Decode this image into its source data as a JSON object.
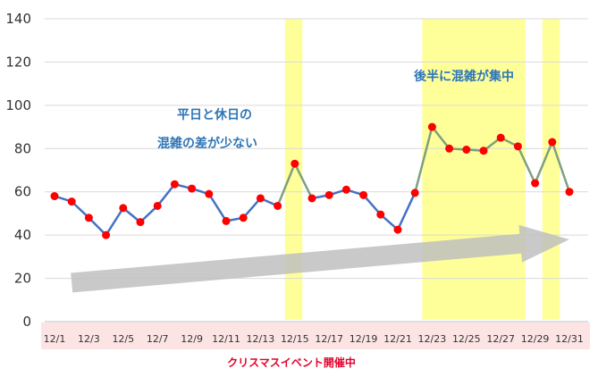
{
  "chart_data": {
    "type": "line",
    "x": [
      "12/1",
      "12/2",
      "12/3",
      "12/4",
      "12/5",
      "12/6",
      "12/7",
      "12/8",
      "12/9",
      "12/10",
      "12/11",
      "12/12",
      "12/13",
      "12/14",
      "12/15",
      "12/16",
      "12/17",
      "12/18",
      "12/19",
      "12/20",
      "12/21",
      "12/22",
      "12/23",
      "12/24",
      "12/25",
      "12/26",
      "12/27",
      "12/28",
      "12/29",
      "12/30",
      "12/31"
    ],
    "values": [
      58,
      55.5,
      48,
      40,
      52.5,
      46,
      53.5,
      63.5,
      61.5,
      59,
      46.5,
      48,
      57,
      53.5,
      73,
      57,
      58.5,
      61,
      58.5,
      49.5,
      42.5,
      59.5,
      90,
      80,
      79.5,
      79,
      85,
      81,
      64,
      83,
      60
    ],
    "x_tick_labels": [
      "12/1",
      "12/3",
      "12/5",
      "12/7",
      "12/9",
      "12/11",
      "12/13",
      "12/15",
      "12/17",
      "12/19",
      "12/21",
      "12/23",
      "12/25",
      "12/27",
      "12/29",
      "12/31"
    ],
    "ylim": [
      0,
      140
    ],
    "y_ticks": [
      0,
      20,
      40,
      60,
      80,
      100,
      120,
      140
    ],
    "grid": true,
    "highlighted_days": [
      "12/15",
      "12/23",
      "12/24",
      "12/25",
      "12/26",
      "12/27",
      "12/28",
      "12/30"
    ],
    "trend_arrow": {
      "from": [
        "12/2",
        18
      ],
      "to": [
        "12/31",
        38
      ]
    },
    "annotations": [
      {
        "text": "平日と休日の"
      },
      {
        "text": "混雑の差が少ない"
      },
      {
        "text": "後半に混雑が集中"
      }
    ],
    "caption": "クリスマスイベント開催中",
    "colors": {
      "line": "#4472C4",
      "segment_highlight": "#7FA07C",
      "marker": "#FF0000",
      "highlight_band": "#FFFF99",
      "event_band": "#FCE4E4",
      "arrow": "#C0C0C0",
      "annotation": "#2E75B6",
      "caption": "#E0002A"
    }
  }
}
